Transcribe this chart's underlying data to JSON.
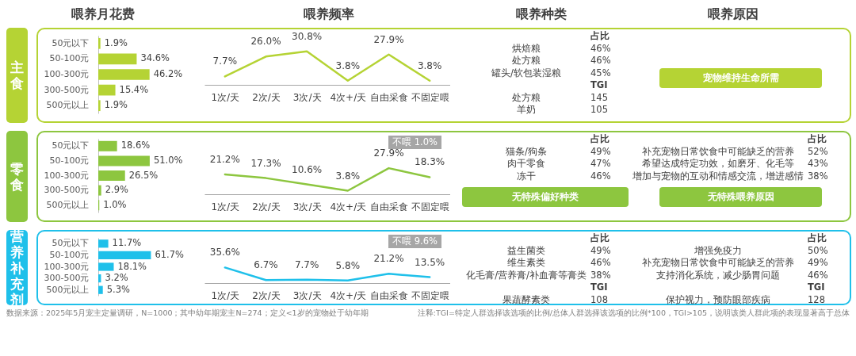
{
  "chart_data": [
    {
      "type": "bar",
      "title": "喂养月花费",
      "ylabel": "主食",
      "orientation": "horizontal",
      "categories": [
        "50元以下",
        "50-100元",
        "100-300元",
        "300-500元",
        "500元以上"
      ],
      "values": [
        1.9,
        34.6,
        46.2,
        15.4,
        1.9
      ],
      "value_labels": [
        "1.9%",
        "34.6%",
        "46.2%",
        "15.4%",
        "1.9%"
      ],
      "color": "#b5d334",
      "annotations": [
        "数据来源：2025年5月宠主定量调研，N=1000；其中幼年期宠主N=274；定义<1岁的宠物处于幼年期",
        "注释:TGI=特定人群选择该选项的比例/总体人群选择该选项的比例*100，TGI>105，说明该类人群此项的表现显著高于总体"
      ]
    },
    {
      "type": "line",
      "title": "喂养频率",
      "categories": [
        "1次/天",
        "2次/天",
        "3次/天",
        "4次+/天",
        "自由采食",
        "不固定喂"
      ],
      "values": [
        7.7,
        26.0,
        30.8,
        3.8,
        27.9,
        3.8
      ],
      "value_labels": [
        "7.7%",
        "26.0%",
        "30.8%",
        "3.8%",
        "27.9%",
        "3.8%"
      ],
      "color": "#b5d334"
    },
    {
      "type": "other",
      "title": "喂养种类",
      "annotations": [
        null,
        "占比",
        "烘焙粮",
        "46%",
        "处方粮",
        "46%",
        "罐头/软包装湿粮",
        "45%",
        null,
        "TGI",
        "处方粮",
        "145",
        "羊奶",
        "105"
      ]
    },
    {
      "type": "other",
      "title": "喂养原因",
      "color": "#b5d334",
      "annotations": [
        "宠物维持生命所需"
      ]
    },
    {
      "type": "bar",
      "ylabel": "零食",
      "orientation": "horizontal",
      "categories": [
        "50元以下",
        "50-100元",
        "100-300元",
        "300-500元",
        "500元以上"
      ],
      "values": [
        18.6,
        51.0,
        26.5,
        2.9,
        1.0
      ],
      "value_labels": [
        "18.6%",
        "51.0%",
        "26.5%",
        "2.9%",
        "1.0%"
      ],
      "color": "#8dc63f"
    },
    {
      "type": "line",
      "categories": [
        "1次/天",
        "2次/天",
        "3次/天",
        "4次+/天",
        "自由采食",
        "不固定喂"
      ],
      "values": [
        21.2,
        17.3,
        10.6,
        3.8,
        27.9,
        18.3
      ],
      "value_labels": [
        "21.2%",
        "17.3%",
        "10.6%",
        "3.8%",
        "27.9%",
        "18.3%"
      ],
      "color": "#8dc63f",
      "annotations": [
        "不喂 1.0%"
      ]
    },
    {
      "type": "other",
      "color": "#8dc63f",
      "annotations": [
        null,
        "占比",
        "猫条/狗条",
        "49%",
        "肉干零食",
        "47%",
        "冻干",
        "46%",
        "无特殊偏好种类"
      ]
    },
    {
      "type": "other",
      "color": "#8dc63f",
      "annotations": [
        null,
        "占比",
        "补充宠物日常饮食中可能缺乏的营养",
        "52%",
        "希望达成特定功效，如磨牙、化毛等",
        "43%",
        "增加与宠物的互动和情感交流，增进感情",
        "38%",
        "无特殊喂养原因"
      ]
    },
    {
      "type": "bar",
      "ylabel": "营养补充剂",
      "orientation": "horizontal",
      "categories": [
        "50元以下",
        "50-100元",
        "100-300元",
        "300-500元",
        "500元以上"
      ],
      "values": [
        11.7,
        61.7,
        18.1,
        3.2,
        5.3
      ],
      "value_labels": [
        "11.7%",
        "61.7%",
        "18.1%",
        "3.2%",
        "5.3%"
      ],
      "color": "#1fc0ea"
    },
    {
      "type": "line",
      "categories": [
        "1次/天",
        "2次/天",
        "3次/天",
        "4次+/天",
        "自由采食",
        "不固定喂"
      ],
      "values": [
        35.6,
        6.7,
        7.7,
        5.8,
        21.2,
        13.5
      ],
      "value_labels": [
        "35.6%",
        "6.7%",
        "7.7%",
        "5.8%",
        "21.2%",
        "13.5%"
      ],
      "color": "#1fc0ea",
      "annotations": [
        "不喂 9.6%"
      ]
    },
    {
      "type": "other",
      "annotations": [
        null,
        "占比",
        "益生菌类",
        "49%",
        "维生素类",
        "46%",
        "化毛膏/营养膏/补血膏等膏类",
        "38%",
        null,
        "TGI",
        "果蔬酵素类",
        "108"
      ]
    },
    {
      "type": "other",
      "annotations": [
        null,
        "占比",
        "增强免疫力",
        "50%",
        "补充宠物日常饮食中可能缺乏的营养",
        "49%",
        "支持消化系统，减少肠胃问题",
        "46%",
        null,
        "TGI",
        "保护视力，预防眼部疾病",
        "128"
      ]
    }
  ]
}
